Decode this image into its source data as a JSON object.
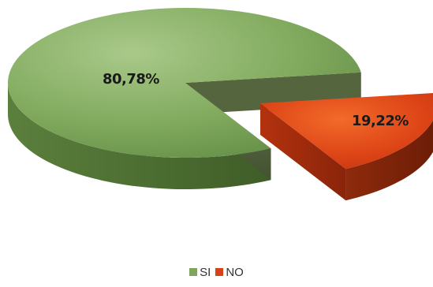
{
  "chart_data": {
    "type": "pie",
    "categories": [
      "SI",
      "NO"
    ],
    "values": [
      80.78,
      19.22
    ],
    "data_labels": [
      "80,78%",
      "19,22%"
    ],
    "colors": [
      "#7ea55c",
      "#d8421a"
    ],
    "exploded_slice": "NO",
    "style": "3d",
    "title": "",
    "legend_position": "bottom",
    "legend": [
      {
        "label": "SI",
        "color": "#7ea55c"
      },
      {
        "label": "NO",
        "color": "#d8421a"
      }
    ]
  }
}
